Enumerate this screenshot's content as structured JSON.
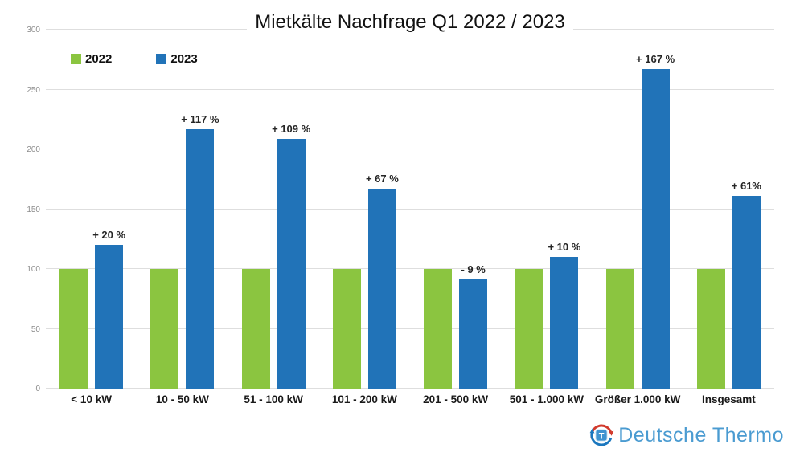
{
  "chart_data": {
    "type": "bar",
    "title": "Mietkälte Nachfrage Q1 2022 / 2023",
    "categories": [
      "< 10 kW",
      "10 - 50 kW",
      "51 - 100 kW",
      "101 - 200 kW",
      "201 - 500 kW",
      "501 - 1.000 kW",
      "Größer 1.000 kW",
      "Insgesamt"
    ],
    "series": [
      {
        "name": "2022",
        "color": "#8BC540",
        "values": [
          100,
          100,
          100,
          100,
          100,
          100,
          100,
          100
        ],
        "labels": [
          "",
          "",
          "",
          "",
          "",
          "",
          "",
          ""
        ]
      },
      {
        "name": "2023",
        "color": "#2173B8",
        "values": [
          120,
          217,
          209,
          167,
          91,
          110,
          267,
          161
        ],
        "labels": [
          "+ 20 %",
          "+ 117 %",
          "+ 109 %",
          "+ 67 %",
          "- 9 %",
          "+ 10 %",
          "+ 167 %",
          "+ 61%"
        ]
      }
    ],
    "xlabel": "",
    "ylabel": "",
    "ylim": [
      0,
      300
    ],
    "yticks": [
      0,
      50,
      100,
      150,
      200,
      250,
      300
    ],
    "grid": true,
    "legend_position": "top-left"
  },
  "branding": {
    "logo_text": "Deutsche Thermo"
  },
  "colors": {
    "grid": "#DEDEDE",
    "axis_tick_text": "#8C8C8C",
    "bar_label_text": "#262626",
    "title_text": "#111111",
    "logo_text": "#4A9BD1",
    "logo_arrow_red": "#D23B2E",
    "logo_arrow_blue": "#1B77BE",
    "logo_square_blue": "#3F93D0"
  }
}
